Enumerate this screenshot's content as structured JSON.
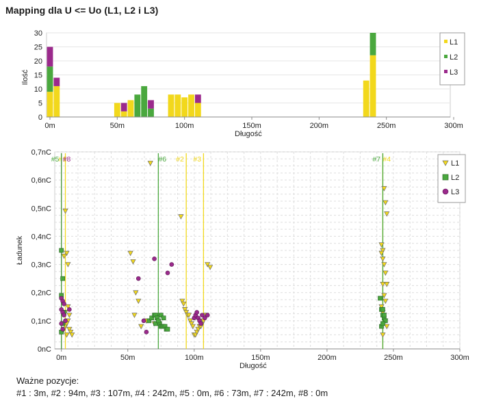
{
  "page_title": "Mapping dla U <= Uo (L1, L2 i L3)",
  "footer": {
    "heading": "Ważne pozycje:",
    "positions_text": "#1 : 3m, #2 : 94m, #3 : 107m, #4 : 242m, #5 : 0m, #6 : 73m, #7 : 242m, #8 : 0m"
  },
  "colors": {
    "L1": "#f2d81c",
    "L2": "#4aa83e",
    "L3": "#9b2a8c",
    "grid": "#c8c8c8",
    "axis": "#666666"
  },
  "chart_data": [
    {
      "type": "bar",
      "stacked": true,
      "xlabel": "Długość",
      "ylabel": "Ilość",
      "xlim": [
        0,
        300
      ],
      "ylim": [
        0,
        30
      ],
      "x_tick_labels": [
        "0m",
        "50m",
        "100m",
        "150m",
        "200m",
        "250m",
        "300m"
      ],
      "x_ticks": [
        0,
        50,
        100,
        150,
        200,
        250,
        300
      ],
      "y_ticks": [
        0,
        5,
        10,
        15,
        20,
        25,
        30
      ],
      "bin_width": 5,
      "bins": [
        0,
        5,
        50,
        55,
        60,
        65,
        70,
        75,
        90,
        95,
        100,
        105,
        110,
        235,
        240
      ],
      "series": [
        {
          "name": "L1",
          "values": [
            9,
            11,
            5,
            2,
            6,
            0,
            0,
            0,
            8,
            8,
            7,
            8,
            5,
            13,
            22
          ]
        },
        {
          "name": "L2",
          "values": [
            9,
            0,
            0,
            0,
            0,
            8,
            11,
            3,
            0,
            0,
            0,
            0,
            0,
            0,
            8
          ]
        },
        {
          "name": "L3",
          "values": [
            7,
            3,
            0,
            3,
            0,
            0,
            0,
            3,
            0,
            0,
            0,
            0,
            3,
            0,
            0
          ]
        }
      ],
      "legend": [
        "L1",
        "L2",
        "L3"
      ],
      "legend_position": "right"
    },
    {
      "type": "scatter",
      "xlabel": "Długość",
      "ylabel": "Ładunek",
      "xlim": [
        -5,
        300
      ],
      "ylim": [
        0,
        0.7
      ],
      "x_ticks": [
        0,
        50,
        100,
        150,
        200,
        250,
        300
      ],
      "x_tick_labels": [
        "0m",
        "50m",
        "100m",
        "150m",
        "200m",
        "250m",
        "300m"
      ],
      "y_ticks": [
        0,
        0.1,
        0.2,
        0.3,
        0.4,
        0.5,
        0.6,
        0.7
      ],
      "y_tick_labels": [
        "0nC",
        "0,1nC",
        "0,2nC",
        "0,3nC",
        "0,4nC",
        "0,5nC",
        "0,6nC",
        "0,7nC"
      ],
      "legend": [
        "L1",
        "L2",
        "L3"
      ],
      "legend_position": "top-right",
      "markers": [
        {
          "label": "#1",
          "x": 3,
          "series": "L1"
        },
        {
          "label": "#8",
          "x": 0,
          "series": "L3"
        },
        {
          "label": "#5",
          "x": 0,
          "series": "L2"
        },
        {
          "label": "#6",
          "x": 73,
          "series": "L2"
        },
        {
          "label": "#2",
          "x": 94,
          "series": "L1"
        },
        {
          "label": "#3",
          "x": 107,
          "series": "L1"
        },
        {
          "label": "#4",
          "x": 242,
          "series": "L1"
        },
        {
          "label": "#7",
          "x": 242,
          "series": "L2"
        }
      ],
      "series": [
        {
          "name": "L1",
          "marker": "triangle",
          "x": [
            3,
            4,
            2,
            5,
            6,
            4,
            3,
            5,
            7,
            8,
            5,
            3,
            6,
            2,
            4,
            52,
            54,
            56,
            58,
            55,
            60,
            67,
            70,
            64,
            90,
            91,
            92,
            93,
            94,
            95,
            96,
            97,
            98,
            99,
            100,
            101,
            102,
            103,
            104,
            105,
            106,
            107,
            108,
            109,
            110,
            112,
            241,
            242,
            243,
            244,
            245,
            241,
            242,
            243,
            244,
            245,
            242,
            243,
            244,
            241,
            242,
            243,
            244,
            245,
            242
          ],
          "y": [
            0.49,
            0.34,
            0.33,
            0.3,
            0.07,
            0.05,
            0.08,
            0.1,
            0.06,
            0.05,
            0.15,
            0.13,
            0.12,
            0.07,
            0.09,
            0.34,
            0.31,
            0.2,
            0.17,
            0.12,
            0.08,
            0.66,
            0.09,
            0.1,
            0.47,
            0.17,
            0.16,
            0.14,
            0.13,
            0.12,
            0.12,
            0.1,
            0.09,
            0.08,
            0.05,
            0.05,
            0.06,
            0.07,
            0.08,
            0.08,
            0.09,
            0.1,
            0.11,
            0.12,
            0.3,
            0.29,
            0.37,
            0.35,
            0.57,
            0.52,
            0.48,
            0.34,
            0.32,
            0.3,
            0.27,
            0.23,
            0.23,
            0.19,
            0.17,
            0.15,
            0.13,
            0.12,
            0.1,
            0.08,
            0.05
          ]
        },
        {
          "name": "L2",
          "marker": "square",
          "x": [
            0,
            1,
            0,
            2,
            1,
            0,
            66,
            68,
            70,
            71,
            72,
            73,
            74,
            75,
            76,
            77,
            78,
            79,
            80,
            71,
            73,
            75,
            77,
            240,
            241,
            242,
            243,
            244,
            241,
            242,
            243,
            242
          ],
          "y": [
            0.35,
            0.25,
            0.19,
            0.13,
            0.09,
            0.06,
            0.1,
            0.11,
            0.12,
            0.12,
            0.11,
            0.1,
            0.09,
            0.08,
            0.08,
            0.08,
            0.08,
            0.07,
            0.07,
            0.09,
            0.1,
            0.12,
            0.11,
            0.18,
            0.14,
            0.12,
            0.11,
            0.1,
            0.08,
            0.09,
            0.12,
            0.14
          ]
        },
        {
          "name": "L3",
          "marker": "circle",
          "x": [
            0,
            1,
            2,
            0,
            1,
            2,
            3,
            6,
            0,
            1,
            58,
            62,
            64,
            70,
            80,
            83,
            100,
            101,
            102,
            103,
            104,
            105,
            106,
            108,
            110
          ],
          "y": [
            0.18,
            0.17,
            0.16,
            0.14,
            0.13,
            0.12,
            0.1,
            0.14,
            0.09,
            0.07,
            0.25,
            0.1,
            0.06,
            0.32,
            0.27,
            0.3,
            0.11,
            0.12,
            0.13,
            0.11,
            0.1,
            0.09,
            0.12,
            0.11,
            0.12
          ]
        }
      ]
    }
  ]
}
